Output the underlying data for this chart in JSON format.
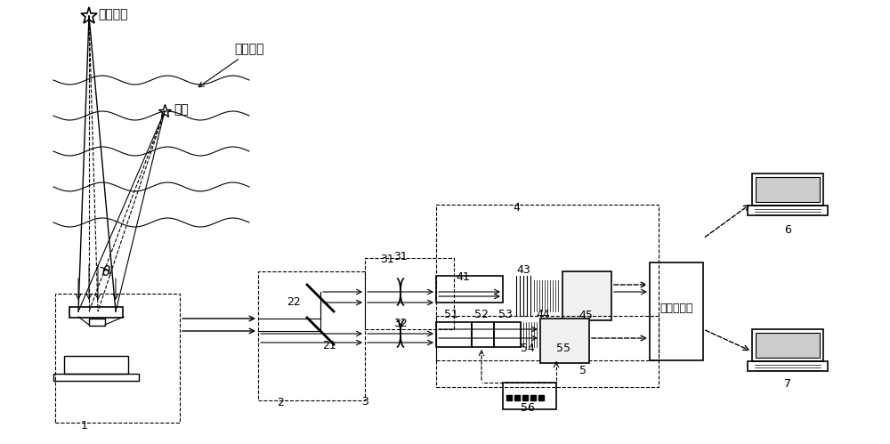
{
  "bg_color": "#ffffff",
  "line_color": "#000000",
  "dashed_box_color": "#000000",
  "labels": {
    "guance_mubiao": "观测目标",
    "xinbiao": "信标",
    "daqi_shuailiu": "大气湍流",
    "theta": "θ",
    "tongbu": "同步触发源",
    "comp1_label": "6",
    "comp2_label": "7",
    "box1": "1",
    "box2": "2",
    "box3": "3",
    "box4": "4",
    "n21": "21",
    "n22": "22",
    "n31": "31",
    "n32": "32",
    "n41": "41",
    "n43": "43",
    "n44": "44",
    "n45": "45",
    "n51": "51",
    "n52": "52",
    "n53": "53",
    "n54": "54",
    "n55": "55",
    "n56": "56",
    "n5": "5"
  },
  "fig_width": 10.0,
  "fig_height": 4.99
}
